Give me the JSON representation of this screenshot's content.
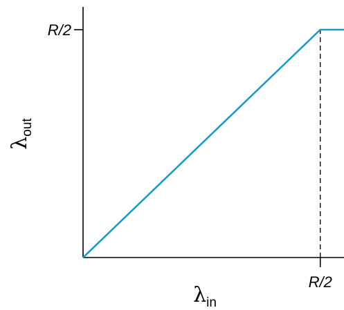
{
  "chart_data": {
    "type": "line",
    "title": "",
    "xlabel": {
      "symbol": "λ",
      "subscript": "in"
    },
    "ylabel": {
      "symbol": "λ",
      "subscript": "out"
    },
    "xlim": [
      0,
      0.55
    ],
    "ylim": [
      0,
      0.55
    ],
    "x_ticks": [
      {
        "value": 0.5,
        "label": "R/2"
      }
    ],
    "y_ticks": [
      {
        "value": 0.5,
        "label": "R/2"
      }
    ],
    "series": [
      {
        "points": [
          [
            0,
            0
          ],
          [
            0.5,
            0.5
          ],
          [
            0.55,
            0.5
          ]
        ],
        "color": "#1a9bc4"
      }
    ],
    "reference_lines": [
      {
        "orientation": "vertical",
        "x": 0.5,
        "y_range": [
          0,
          0.5
        ],
        "style": "dashed",
        "color": "#000000"
      }
    ],
    "grid": false,
    "legend": "none"
  }
}
